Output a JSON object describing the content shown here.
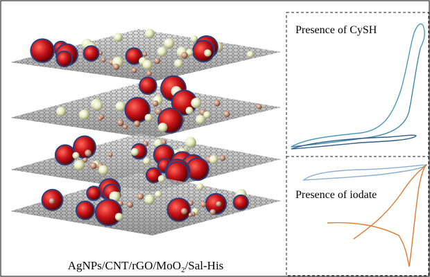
{
  "left_panel": {
    "caption": {
      "before": "AgNPs/CNT/rGO/MoO",
      "subscript": "2",
      "after": "/Sal-His"
    }
  },
  "right_panels": [
    {
      "label": "Presence of CySH"
    },
    {
      "label": "Presence of iodate"
    }
  ]
}
